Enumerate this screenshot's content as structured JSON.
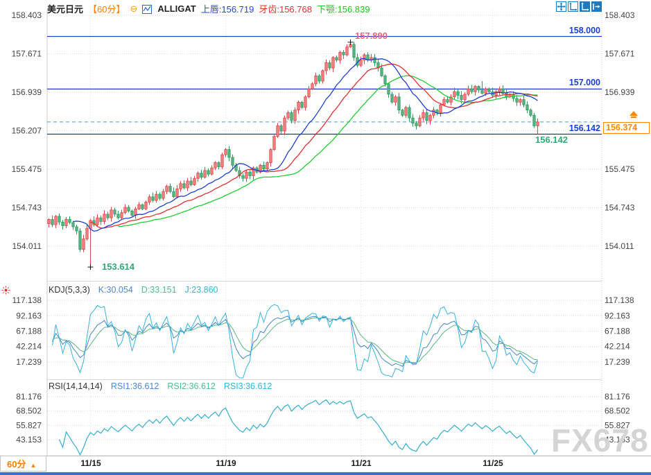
{
  "header": {
    "symbol": "美元日元",
    "period": "【60分】",
    "indicator": "ALLIGAT",
    "alligator": {
      "lips": "上唇:156.719",
      "teeth": "牙齿:156.768",
      "jaw": "下颚:156.839"
    }
  },
  "toolbar": {
    "icons": [
      "crosshair-move",
      "axis-zoom",
      "axis-scale-active",
      "collapse-right"
    ]
  },
  "kdj_panel": {
    "title": "KDJ(5,3,3)",
    "k": "K:30.054",
    "d": "D:33.151",
    "j": "J:23.860"
  },
  "rsi_panel": {
    "title": "RSI(14,14,14)",
    "rsi1": "RSI1:36.612",
    "rsi2": "RSI2:36.612",
    "rsi3": "RSI3:36.612"
  },
  "annotations": {
    "high": "157.890",
    "low": "153.614",
    "support_green": "156.142",
    "level_158": "158.000",
    "level_157": "157.000",
    "level_156142": "156.142",
    "price_tag": "156.374"
  },
  "footer": {
    "period": "60分",
    "arrow": "▲",
    "dates": [
      "11/15",
      "11/19",
      "11/21",
      "11/25"
    ]
  },
  "watermark": "FX678",
  "chart_data": {
    "type": "candlestick",
    "title": "美元日元 60分",
    "y_ticks": [
      158.403,
      157.671,
      156.939,
      156.207,
      155.475,
      154.743,
      154.011
    ],
    "kdj_ticks": [
      117.138,
      92.163,
      67.188,
      42.214,
      17.239
    ],
    "rsi_ticks": [
      81.176,
      68.502,
      55.827,
      43.153
    ],
    "x_ticks": [
      {
        "label": "11/15",
        "index": 12
      },
      {
        "label": "11/19",
        "index": 51
      },
      {
        "label": "11/21",
        "index": 90
      },
      {
        "label": "11/25",
        "index": 128
      }
    ],
    "levels": {
      "resistance": [
        158.0,
        157.0
      ],
      "last_price_line": 156.374,
      "support": 156.142
    },
    "markers": {
      "high": {
        "index": 87,
        "price": 157.89
      },
      "low": {
        "index": 12,
        "price": 153.614
      },
      "last_low": 156.142,
      "last_close": 156.374
    },
    "alligator": {
      "lips_value": 156.719,
      "teeth_value": 156.768,
      "jaw_value": 156.839,
      "lips_period": [
        5,
        3
      ],
      "teeth_period": [
        8,
        5
      ],
      "jaw_period": [
        13,
        8
      ]
    },
    "kdj": {
      "params": [
        5,
        3,
        3
      ],
      "k": 30.054,
      "d": 33.151,
      "j": 23.86
    },
    "rsi": {
      "params": [
        14,
        14,
        14
      ],
      "values": [
        36.612,
        36.612,
        36.612
      ]
    },
    "colors": {
      "up": "#dd4444",
      "up_fill": "#f08484",
      "down": "#2f9a60",
      "down_fill": "#5ab382",
      "lips": "#1f3fd0",
      "teeth": "#e03030",
      "jaw": "#22cc33",
      "k": "#3f86d0",
      "d": "#55b87c",
      "j": "#35b1e0",
      "level_blue": "#1a3fd0",
      "level_dark": "#1b2f6e",
      "dashed_blue": "#3d9be9",
      "grid": "#e6d4d4",
      "vgrid": "#dddddd",
      "axis_text": "#444444",
      "accent": "#ff8800"
    },
    "closes": [
      154.52,
      154.42,
      154.58,
      154.47,
      154.4,
      154.52,
      154.46,
      154.38,
      154.3,
      153.95,
      154.15,
      154.35,
      154.5,
      154.42,
      154.55,
      154.48,
      154.62,
      154.55,
      154.7,
      154.62,
      154.55,
      154.65,
      154.75,
      154.68,
      154.6,
      154.72,
      154.8,
      154.72,
      154.85,
      154.95,
      154.88,
      155.0,
      154.92,
      155.05,
      155.15,
      155.05,
      154.95,
      155.1,
      155.2,
      155.12,
      155.25,
      155.18,
      155.3,
      155.4,
      155.32,
      155.45,
      155.38,
      155.5,
      155.6,
      155.52,
      155.75,
      155.85,
      155.7,
      155.55,
      155.45,
      155.35,
      155.3,
      155.42,
      155.35,
      155.5,
      155.42,
      155.55,
      155.48,
      155.6,
      155.85,
      156.1,
      156.3,
      156.2,
      156.45,
      156.55,
      156.4,
      156.6,
      156.75,
      156.65,
      156.85,
      157.0,
      157.1,
      157.25,
      157.15,
      157.35,
      157.5,
      157.4,
      157.6,
      157.55,
      157.7,
      157.65,
      157.8,
      157.85,
      157.6,
      157.45,
      157.55,
      157.65,
      157.55,
      157.6,
      157.5,
      157.4,
      157.25,
      157.1,
      156.9,
      156.75,
      156.85,
      156.6,
      156.5,
      156.65,
      156.45,
      156.35,
      156.3,
      156.45,
      156.55,
      156.4,
      156.5,
      156.6,
      156.55,
      156.7,
      156.8,
      156.75,
      156.85,
      156.95,
      156.88,
      156.8,
      156.9,
      157.0,
      156.95,
      157.05,
      156.98,
      156.92,
      157.0,
      156.95,
      156.88,
      156.95,
      157.0,
      156.92,
      156.85,
      156.9,
      156.82,
      156.75,
      156.8,
      156.7,
      156.6,
      156.5,
      156.3,
      156.374
    ],
    "overrides": {
      "9": {
        "low": 153.9
      },
      "12": {
        "low": 153.614
      },
      "87": {
        "high": 157.89
      },
      "125": {
        "high": 157.15
      },
      "141": {
        "low": 156.142
      }
    }
  }
}
